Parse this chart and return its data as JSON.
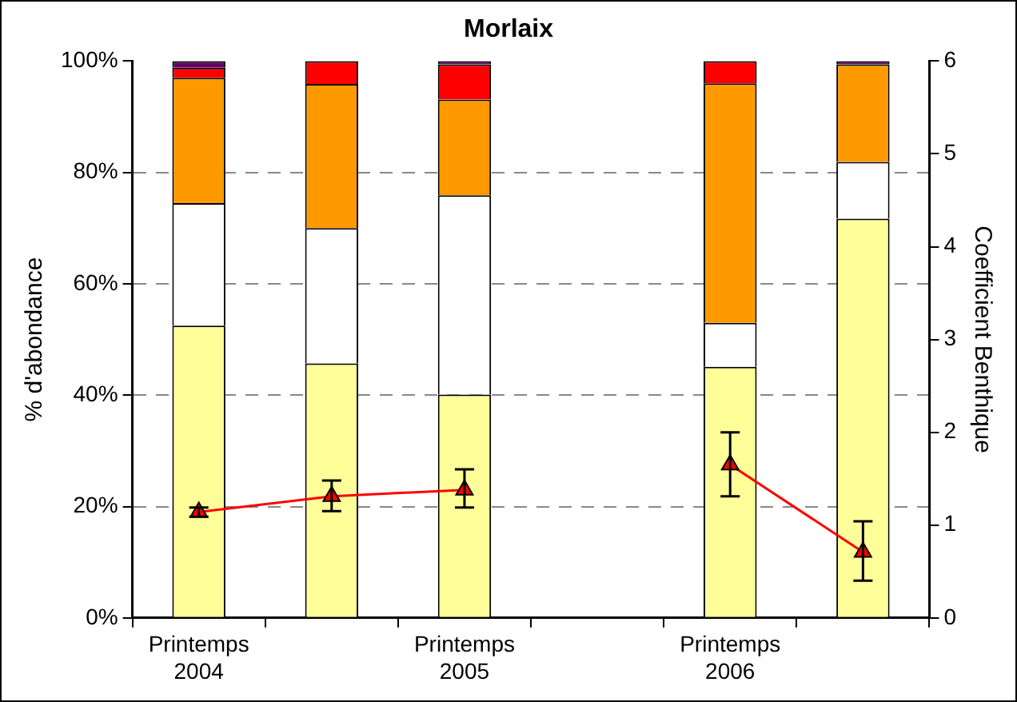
{
  "chart_data": {
    "type": "bar",
    "title": "Morlaix",
    "ylabel": "% d'abondance",
    "y2label": "Coefficient Benthique",
    "categories": [
      "Printemps 2004",
      null,
      "Printemps 2005",
      null,
      "Printemps 2006",
      null
    ],
    "stacked": true,
    "series": [
      {
        "color": "#ffff99",
        "values": [
          52.5,
          45.7,
          40.1,
          null,
          45.1,
          71.7
        ]
      },
      {
        "color": "#ffffff",
        "values": [
          22,
          24.3,
          35.8,
          null,
          7.9,
          10.2
        ]
      },
      {
        "color": "#ff9900",
        "values": [
          22.5,
          25.9,
          17.2,
          null,
          43,
          17.5
        ]
      },
      {
        "color": "#ff0000",
        "values": [
          1.8,
          4.1,
          6.3,
          null,
          4,
          0
        ]
      },
      {
        "color": "#660066",
        "values": [
          1.2,
          0,
          0.6,
          null,
          0,
          0.6
        ]
      },
      {
        "type": "line",
        "axis": "y2",
        "color": "#ff0000",
        "marker": "triangle",
        "values": [
          1.14,
          1.31,
          1.38,
          null,
          1.65,
          0.71
        ],
        "errors": [
          [
            1.09,
            1.19
          ],
          [
            1.15,
            1.48
          ],
          [
            1.19,
            1.6
          ],
          null,
          [
            1.31,
            2.0
          ],
          [
            0.4,
            1.04
          ]
        ]
      }
    ],
    "ylim": [
      0,
      100
    ],
    "yticks": [
      {
        "value": 0,
        "label": "0%"
      },
      {
        "value": 20,
        "label": "20%"
      },
      {
        "value": 40,
        "label": "40%"
      },
      {
        "value": 60,
        "label": "60%"
      },
      {
        "value": 80,
        "label": "80%"
      },
      {
        "value": 100,
        "label": "100%"
      }
    ],
    "y2lim": [
      0,
      6
    ],
    "y2ticks": [
      0,
      1,
      2,
      3,
      4,
      5,
      6
    ],
    "grid": "y",
    "legend": false
  }
}
